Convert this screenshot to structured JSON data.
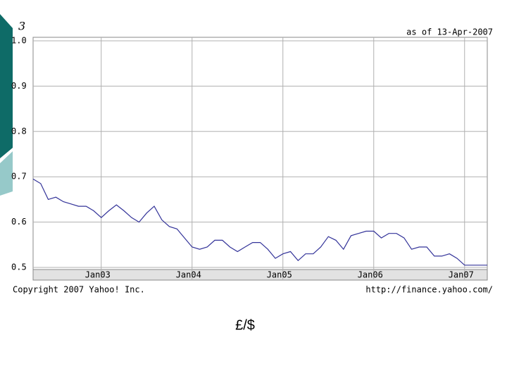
{
  "slide_number": "3",
  "caption": "£/$",
  "chart_data": {
    "type": "line",
    "annotations": [
      "as of 13-Apr-2007",
      "Copyright 2007 Yahoo! Inc.",
      "http://finance.yahoo.com/"
    ],
    "x": [
      "2002-04",
      "2002-05",
      "2002-06",
      "2002-07",
      "2002-08",
      "2002-09",
      "2002-10",
      "2002-11",
      "2002-12",
      "2003-01",
      "2003-02",
      "2003-03",
      "2003-04",
      "2003-05",
      "2003-06",
      "2003-07",
      "2003-08",
      "2003-09",
      "2003-10",
      "2003-11",
      "2003-12",
      "2004-01",
      "2004-02",
      "2004-03",
      "2004-04",
      "2004-05",
      "2004-06",
      "2004-07",
      "2004-08",
      "2004-09",
      "2004-10",
      "2004-11",
      "2004-12",
      "2005-01",
      "2005-02",
      "2005-03",
      "2005-04",
      "2005-05",
      "2005-06",
      "2005-07",
      "2005-08",
      "2005-09",
      "2005-10",
      "2005-11",
      "2005-12",
      "2006-01",
      "2006-02",
      "2006-03",
      "2006-04",
      "2006-05",
      "2006-06",
      "2006-07",
      "2006-08",
      "2006-09",
      "2006-10",
      "2006-11",
      "2006-12",
      "2007-01",
      "2007-02",
      "2007-03",
      "2007-04"
    ],
    "values": [
      0.695,
      0.685,
      0.65,
      0.655,
      0.645,
      0.64,
      0.635,
      0.635,
      0.625,
      0.61,
      0.625,
      0.638,
      0.625,
      0.61,
      0.6,
      0.62,
      0.635,
      0.605,
      0.59,
      0.585,
      0.565,
      0.545,
      0.54,
      0.545,
      0.56,
      0.56,
      0.545,
      0.535,
      0.545,
      0.555,
      0.555,
      0.54,
      0.52,
      0.53,
      0.535,
      0.515,
      0.53,
      0.53,
      0.545,
      0.568,
      0.56,
      0.54,
      0.57,
      0.575,
      0.58,
      0.58,
      0.565,
      0.575,
      0.575,
      0.565,
      0.54,
      0.545,
      0.545,
      0.525,
      0.525,
      0.53,
      0.52,
      0.505,
      0.505,
      0.505,
      0.505
    ],
    "color": "#333399",
    "xlim": [
      "2002-04",
      "2007-04"
    ],
    "xticks": [
      {
        "value": "2003-01",
        "label": "Jan03"
      },
      {
        "value": "2004-01",
        "label": "Jan04"
      },
      {
        "value": "2005-01",
        "label": "Jan05"
      },
      {
        "value": "2006-01",
        "label": "Jan06"
      },
      {
        "value": "2007-01",
        "label": "Jan07"
      }
    ],
    "ylim": [
      0.5,
      1
    ],
    "yticks": [
      {
        "value": 1,
        "label": "1.0"
      },
      0.9,
      0.8,
      0.7,
      0.6,
      0.5
    ],
    "grid": true
  }
}
